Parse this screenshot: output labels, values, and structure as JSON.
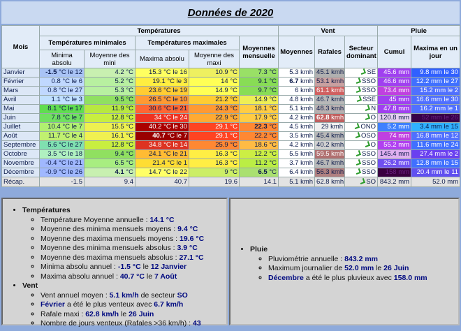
{
  "title": "Données de 2020",
  "header": {
    "mois": "Mois",
    "temperatures": "Températures",
    "vent": "Vent",
    "pluie": "Pluie",
    "temp_min": "Températures minimales",
    "temp_max": "Températures maximales",
    "moy_mensuelle": "Moyennes mensuelle",
    "vent_moyennes": "Moyennes",
    "rafales": "Rafales",
    "secteur": "Secteur dominant",
    "cumul": "Cumul",
    "maxima_jour": "Maxima en un jour",
    "minima_absolu": "Minima absolu",
    "moyenne_mini": "Moyenne des mini",
    "maxima_absolu": "Maxima absolu",
    "moyenne_maxi": "Moyenne des maxi"
  },
  "rows": [
    {
      "month": "Janvier",
      "cells": [
        "-1.5 °C le 12",
        "4.2 °C",
        "15.3 °C le 16",
        "10.9 °C",
        "7.3 °C",
        "5.3 kmh",
        "45.1 kmh",
        "SE",
        "45.6 mm",
        "9.8 mm le 30"
      ],
      "bold_cells": [
        0
      ],
      "colors": [
        "#a9c3f5",
        "#c8f0b0",
        "#ffff60",
        "#eef060",
        "#99e066",
        "#ffffff",
        "#b0b0b0",
        "#ffffff",
        "#a040f0",
        "#3060ff"
      ]
    },
    {
      "month": "Février",
      "cells": [
        "0.8 °C le 6",
        "5.2 °C",
        "19.1 °C le 3",
        "14 °C",
        "9.1 °C",
        "6.7 kmh",
        "53.1 kmh",
        "SSO",
        "46.6 mm",
        "12.2 mm le 27"
      ],
      "bold_cells": [
        5
      ],
      "colors": [
        "#c0d8ff",
        "#b8f0a0",
        "#ffee40",
        "#ffff55",
        "#88dd55",
        "#ffffff",
        "#c9a0a0",
        "#ffffff",
        "#a040f0",
        "#4070ff"
      ]
    },
    {
      "month": "Mars",
      "cells": [
        "0.8 °C le 27",
        "5.3 °C",
        "23.6 °C le 19",
        "14.9 °C",
        "9.7 °C",
        "6 kmh",
        "61.1 kmh",
        "SSO",
        "73.4 mm",
        "15.2 mm le 2"
      ],
      "colors": [
        "#c0d8ff",
        "#b8f0a0",
        "#ffcc33",
        "#ffff55",
        "#88dd55",
        "#ffffff",
        "#d06060",
        "#ffffff",
        "#c040e0",
        "#5070ff"
      ]
    },
    {
      "month": "Avril",
      "cells": [
        "1.1 °C le 3",
        "9.5 °C",
        "26.5 °C le 10",
        "21.2 °C",
        "14.9 °C",
        "4.8 kmh",
        "46.7 kmh",
        "SSE",
        "45 mm",
        "16.6 mm le 30"
      ],
      "colors": [
        "#c0e0ff",
        "#90e060",
        "#ff9933",
        "#ffcc33",
        "#eeee55",
        "#ffffff",
        "#b8b8b8",
        "#ffffff",
        "#a040f0",
        "#5070ff"
      ]
    },
    {
      "month": "Mai",
      "cells": [
        "8.1 °C le 17",
        "11.9 °C",
        "30.6 °C le 21",
        "24.3 °C",
        "18.1 °C",
        "5.1 kmh",
        "48.3 kmh",
        "N",
        "47.8 mm",
        "16.2 mm le 1"
      ],
      "colors": [
        "#60dd50",
        "#b8e840",
        "#ff6633",
        "#ff9933",
        "#ffcc44",
        "#ffffff",
        "#b8b0b0",
        "#ffffff",
        "#a040f0",
        "#5070ff"
      ]
    },
    {
      "month": "Juin",
      "cells": [
        "7.8 °C le 7",
        "12.8 °C",
        "34 °C le 24",
        "22.9 °C",
        "17.9 °C",
        "4.2 kmh",
        "62.8 kmh",
        "O",
        "120.8 mm",
        "52 mm le 26"
      ],
      "bold_cells": [
        6
      ],
      "colors": [
        "#70e060",
        "#c8ee40",
        "#ee3322",
        "#ffaa33",
        "#ffcc44",
        "#ffffff",
        "#c06060",
        "#ffffff",
        "#e6d0f2",
        "#380048"
      ]
    },
    {
      "month": "Juillet",
      "cells": [
        "10.4 °C le 7",
        "15.5 °C",
        "40.2 °C le 30",
        "29.1 °C",
        "22.3 °C",
        "4.5 kmh",
        "29 kmh",
        "ONO",
        "5.2 mm",
        "3.4 mm le 15"
      ],
      "bold_cells": [
        4
      ],
      "colors": [
        "#b0f070",
        "#eef050",
        "#aa0000",
        "#ff4422",
        "#ff8833",
        "#ffffff",
        "#f0f0f0",
        "#ffffff",
        "#4080ff",
        "#30b0ff"
      ]
    },
    {
      "month": "Août",
      "cells": [
        "11.7 °C le 4",
        "16.1 °C",
        "40.7 °C le 7",
        "29.1 °C",
        "22.2 °C",
        "3.5 kmh",
        "45.4 kmh",
        "OSO",
        "74 mm",
        "16.8 mm le 12"
      ],
      "bold_cells": [
        2
      ],
      "colors": [
        "#c0f070",
        "#f0f050",
        "#990000",
        "#ff4422",
        "#ff8833",
        "#ffffff",
        "#b8b8b8",
        "#ffffff",
        "#c040e0",
        "#5070ff"
      ]
    },
    {
      "month": "Septembre",
      "cells": [
        "5.6 °C le 27",
        "12.8 °C",
        "34.8 °C le 14",
        "25.9 °C",
        "18.6 °C",
        "4.2 kmh",
        "40.2 kmh",
        "O",
        "55.2 mm",
        "11.6 mm le 24"
      ],
      "colors": [
        "#80e0b0",
        "#c8ee40",
        "#dd3322",
        "#ff8833",
        "#ffbb44",
        "#ffffff",
        "#d0d0d0",
        "#ffffff",
        "#b040f0",
        "#4070ff"
      ]
    },
    {
      "month": "Octobre",
      "cells": [
        "3.5 °C le 18",
        "9.4 °C",
        "24.1 °C le 21",
        "16.3 °C",
        "12.2 °C",
        "5.5 kmh",
        "59.5 kmh",
        "SSO",
        "145.4 mm",
        "27.4 mm le 2"
      ],
      "colors": [
        "#b0f0c0",
        "#90e060",
        "#ffbb33",
        "#ffee44",
        "#ccee44",
        "#ffffff",
        "#b07070",
        "#ffffff",
        "#e0b0f0",
        "#6a40f0"
      ]
    },
    {
      "month": "Novembre",
      "cells": [
        "-0.4 °C le 21",
        "6.5 °C",
        "21.4 °C le 1",
        "16.3 °C",
        "11.2 °C",
        "3.7 kmh",
        "46.7 kmh",
        "SSO",
        "26.2 mm",
        "12.8 mm le 15"
      ],
      "colors": [
        "#a0b8ff",
        "#a8ee80",
        "#ffdd33",
        "#ffee44",
        "#bbee44",
        "#ffffff",
        "#b8b8b8",
        "#ffffff",
        "#7050f0",
        "#4070ff"
      ]
    },
    {
      "month": "Décembre",
      "cells": [
        "-0.9 °C le 26",
        "4.1 °C",
        "14.7 °C le 22",
        "9 °C",
        "6.5 °C",
        "6.4 kmh",
        "56.3 kmh",
        "SSO",
        "158 mm",
        "20.4 mm le 11"
      ],
      "bold_cells": [
        1,
        4
      ],
      "colors": [
        "#a0b8ff",
        "#c8f0b0",
        "#ffff66",
        "#ccee66",
        "#aae070",
        "#ffffff",
        "#b08080",
        "#ffffff",
        "#3a0040",
        "#6050f0"
      ]
    }
  ],
  "recap": {
    "month": "Récap.",
    "cells": [
      "-1.5",
      "9.4",
      "40.7",
      "19.6",
      "14.1",
      "5.1 kmh",
      "62.8 kmh",
      "SO",
      "843.2 mm",
      "52.0 mm"
    ]
  },
  "panels": {
    "left": [
      {
        "title": "Températures",
        "items": [
          [
            {
              "text": "Température Moyenne annuelle : "
            },
            {
              "text": "14.1 °C",
              "bold": true
            }
          ],
          [
            {
              "text": "Moyenne des minima mensuels moyens : "
            },
            {
              "text": "9.4 °C",
              "bold": true
            }
          ],
          [
            {
              "text": "Moyenne des maxima mensuels moyens : "
            },
            {
              "text": "19.6 °C",
              "bold": true
            }
          ],
          [
            {
              "text": "Moyenne des minima mensuels absolus : "
            },
            {
              "text": "3.9 °C",
              "bold": true
            }
          ],
          [
            {
              "text": "Moyenne des maxima mensuels absolus : "
            },
            {
              "text": "27.1 °C",
              "bold": true
            }
          ],
          [
            {
              "text": "Minima absolu annuel : "
            },
            {
              "text": "-1.5 °C",
              "bold": true
            },
            {
              "text": " le "
            },
            {
              "text": "12 Janvier",
              "bold": true
            }
          ],
          [
            {
              "text": "Maxima absolu annuel : "
            },
            {
              "text": "40.7 °C",
              "bold": true
            },
            {
              "text": " le "
            },
            {
              "text": "7 Août",
              "bold": true
            }
          ]
        ]
      },
      {
        "title": "Vent",
        "items": [
          [
            {
              "text": "Vent annuel moyen : "
            },
            {
              "text": "5.1 km/h",
              "bold": true
            },
            {
              "text": " de secteur "
            },
            {
              "text": "SO",
              "bold": true
            }
          ],
          [
            {
              "text": "Février",
              "bold": true
            },
            {
              "text": " a été le plus venteux avec "
            },
            {
              "text": "6.7 km/h",
              "bold": true
            }
          ],
          [
            {
              "text": "Rafale maxi : "
            },
            {
              "text": "62.8 km/h",
              "bold": true
            },
            {
              "text": " le "
            },
            {
              "text": "26 Juin",
              "bold": true
            }
          ],
          [
            {
              "text": "Nombre de jours venteux (Rafales >36 km/h) : "
            },
            {
              "text": "43",
              "bold": true
            }
          ]
        ]
      }
    ],
    "right": [
      {
        "title": "Pluie",
        "items": [
          [
            {
              "text": "Pluviométrie annuelle : "
            },
            {
              "text": "843.2 mm",
              "bold": true
            }
          ],
          [
            {
              "text": "Maximum journalier de "
            },
            {
              "text": "52.0 mm",
              "bold": true
            },
            {
              "text": " le "
            },
            {
              "text": "26 Juin",
              "bold": true
            }
          ],
          [
            {
              "text": "Décembre",
              "bold": true
            },
            {
              "text": " a été le plus pluvieux avec "
            },
            {
              "text": "158.0 mm",
              "bold": true
            }
          ]
        ]
      }
    ]
  }
}
